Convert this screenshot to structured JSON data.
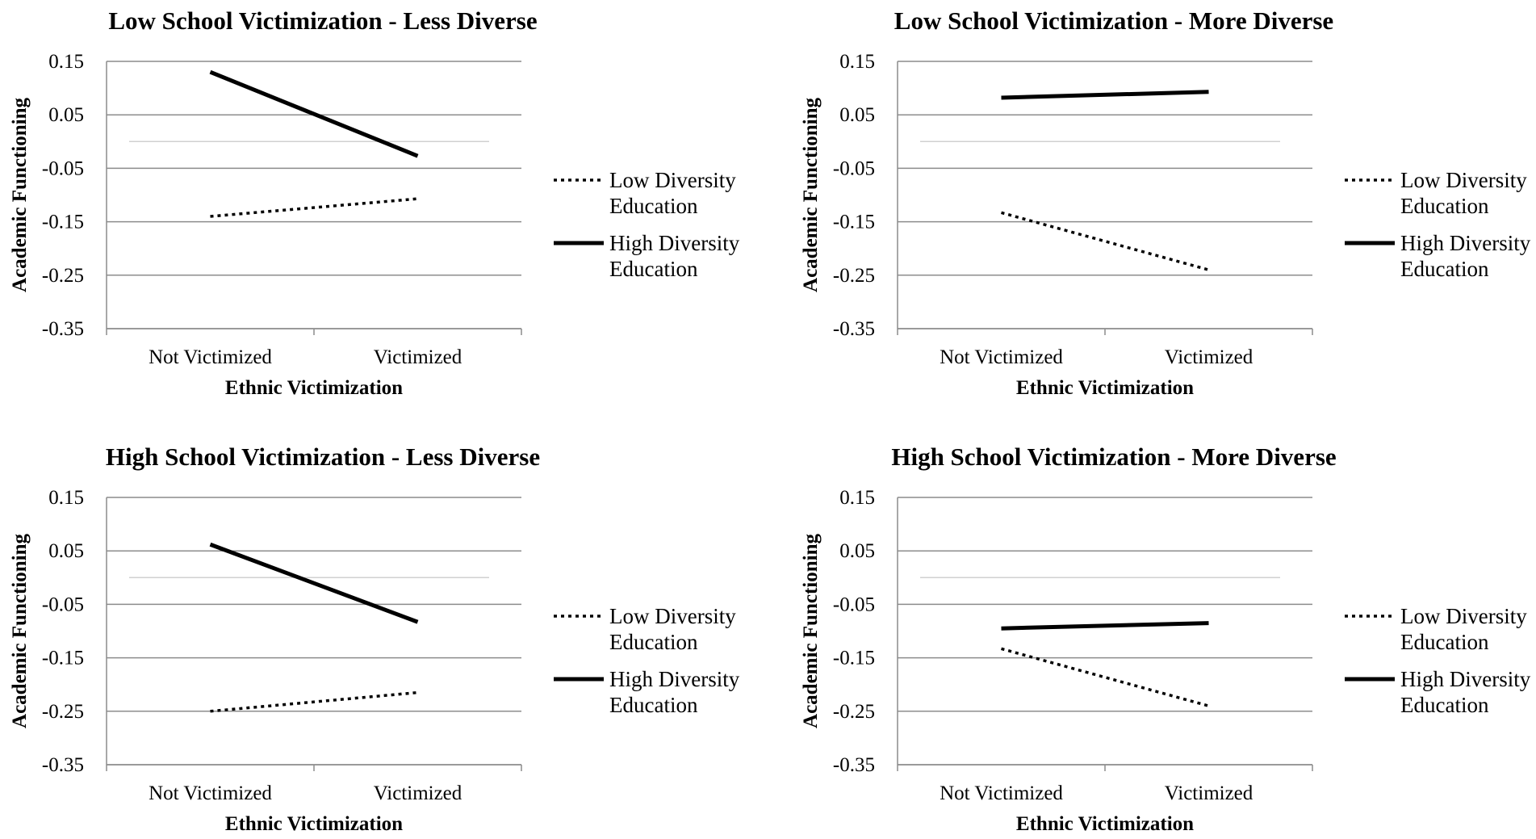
{
  "figure": {
    "legend_position": "right",
    "colors": {
      "axis": "#8c8c8c",
      "grid": "#8c8c8c",
      "zero_line": "#d0d0d0",
      "series": "#000000",
      "background": "#ffffff"
    }
  },
  "chart_data": [
    {
      "type": "line",
      "title": "Low School Victimization - Less Diverse",
      "xlabel": "Ethnic Victimization",
      "ylabel": "Academic Functioning",
      "categories": [
        "Not Victimized",
        "Victimized"
      ],
      "ylim": [
        -0.35,
        0.15
      ],
      "yticks": [
        "0.15",
        "0.05",
        "-0.05",
        "-0.15",
        "-0.25",
        "-0.35"
      ],
      "ytick_values": [
        0.15,
        0.05,
        -0.05,
        -0.15,
        -0.25,
        -0.35
      ],
      "grid": true,
      "series": [
        {
          "name": "Low Diversity Education",
          "legend_lines": [
            "Low Diversity",
            "Education"
          ],
          "style": "dotted",
          "values": [
            -0.14,
            -0.107
          ]
        },
        {
          "name": "High Diversity Education",
          "legend_lines": [
            "High Diversity",
            "Education"
          ],
          "style": "solid",
          "values": [
            0.13,
            -0.027
          ]
        }
      ]
    },
    {
      "type": "line",
      "title": "Low School Victimization - More Diverse",
      "xlabel": "Ethnic Victimization",
      "ylabel": "Academic Functioning",
      "categories": [
        "Not Victimized",
        "Victimized"
      ],
      "ylim": [
        -0.35,
        0.15
      ],
      "yticks": [
        "0.15",
        "0.05",
        "-0.05",
        "-0.15",
        "-0.25",
        "-0.35"
      ],
      "ytick_values": [
        0.15,
        0.05,
        -0.05,
        -0.15,
        -0.25,
        -0.35
      ],
      "grid": true,
      "series": [
        {
          "name": "Low Diversity Education",
          "legend_lines": [
            "Low Diversity",
            "Education"
          ],
          "style": "dotted",
          "values": [
            -0.133,
            -0.24
          ]
        },
        {
          "name": "High Diversity Education",
          "legend_lines": [
            "High Diversity",
            "Education"
          ],
          "style": "solid",
          "values": [
            0.082,
            0.093
          ]
        }
      ]
    },
    {
      "type": "line",
      "title": "High School Victimization - Less Diverse",
      "xlabel": "Ethnic Victimization",
      "ylabel": "Academic Functioning",
      "categories": [
        "Not Victimized",
        "Victimized"
      ],
      "ylim": [
        -0.35,
        0.15
      ],
      "yticks": [
        "0.15",
        "0.05",
        "-0.05",
        "-0.15",
        "-0.25",
        "-0.35"
      ],
      "ytick_values": [
        0.15,
        0.05,
        -0.05,
        -0.15,
        -0.25,
        -0.35
      ],
      "grid": true,
      "series": [
        {
          "name": "Low Diversity Education",
          "legend_lines": [
            "Low Diversity",
            "Education"
          ],
          "style": "dotted",
          "values": [
            -0.25,
            -0.215
          ]
        },
        {
          "name": "High Diversity Education",
          "legend_lines": [
            "High Diversity",
            "Education"
          ],
          "style": "solid",
          "values": [
            0.062,
            -0.083
          ]
        }
      ]
    },
    {
      "type": "line",
      "title": "High School Victimization - More Diverse",
      "xlabel": "Ethnic Victimization",
      "ylabel": "Academic Functioning",
      "categories": [
        "Not Victimized",
        "Victimized"
      ],
      "ylim": [
        -0.35,
        0.15
      ],
      "yticks": [
        "0.15",
        "0.05",
        "-0.05",
        "-0.15",
        "-0.25",
        "-0.35"
      ],
      "ytick_values": [
        0.15,
        0.05,
        -0.05,
        -0.15,
        -0.25,
        -0.35
      ],
      "grid": true,
      "series": [
        {
          "name": "Low Diversity Education",
          "legend_lines": [
            "Low Diversity",
            "Education"
          ],
          "style": "dotted",
          "values": [
            -0.133,
            -0.24
          ]
        },
        {
          "name": "High Diversity Education",
          "legend_lines": [
            "High Diversity",
            "Education"
          ],
          "style": "solid",
          "values": [
            -0.095,
            -0.085
          ]
        }
      ]
    }
  ]
}
